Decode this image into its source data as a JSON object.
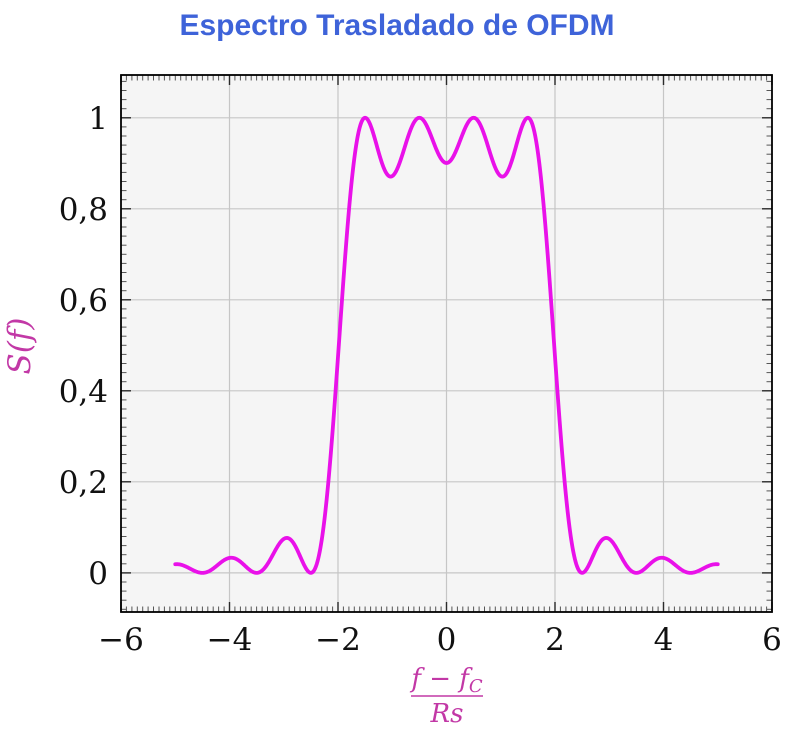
{
  "chart_data": {
    "type": "line",
    "title": "Espectro Trasladado de OFDM",
    "ylabel": "S(f)",
    "xlabel": {
      "numerator": "f − f",
      "numerator_subscript": "C",
      "denominator": "Rs"
    },
    "x_range": [
      -6,
      6
    ],
    "y_range": [
      -0.086,
      1.094
    ],
    "x_ticks": [
      -6,
      -4,
      -2,
      0,
      2,
      4,
      6
    ],
    "x_tick_labels": [
      "−6",
      "−4",
      "−2",
      "0",
      "2",
      "4",
      "6"
    ],
    "y_ticks": [
      0,
      0.2,
      0.4,
      0.6,
      0.8,
      1
    ],
    "y_tick_labels": [
      "0",
      "0,2",
      "0,4",
      "0,6",
      "0,8",
      "1"
    ],
    "x_minor_step": 0.1,
    "y_minor_step": 0.02,
    "grid": "major",
    "legend": "none",
    "series": [
      {
        "name": "S(f)",
        "model": "sum_of_squared_sincs",
        "formula": "S(f) = sinc²(f+1.5) + sinc²(f+0.5) + sinc²(f−0.5) + sinc²(f−1.5)",
        "subcarriers": [
          -1.5,
          -0.5,
          0.5,
          1.5
        ],
        "domain": [
          -5,
          5
        ],
        "key_points": [
          {
            "x": -5,
            "y": 0.019
          },
          {
            "x": -4.5,
            "y": 0
          },
          {
            "x": -4,
            "y": 0.033
          },
          {
            "x": -3.5,
            "y": 0
          },
          {
            "x": -3,
            "y": 0.074
          },
          {
            "x": -2.5,
            "y": 0
          },
          {
            "x": -2,
            "y": 0.475
          },
          {
            "x": -1.5,
            "y": 1.0
          },
          {
            "x": -1,
            "y": 0.872
          },
          {
            "x": -0.5,
            "y": 1.0
          },
          {
            "x": 0,
            "y": 0.901
          },
          {
            "x": 0.5,
            "y": 1.0
          },
          {
            "x": 1,
            "y": 0.872
          },
          {
            "x": 1.5,
            "y": 1.0
          },
          {
            "x": 2,
            "y": 0.475
          },
          {
            "x": 2.5,
            "y": 0
          },
          {
            "x": 3,
            "y": 0.074
          },
          {
            "x": 3.5,
            "y": 0
          },
          {
            "x": 4,
            "y": 0.033
          },
          {
            "x": 4.5,
            "y": 0
          },
          {
            "x": 5,
            "y": 0.019
          }
        ]
      }
    ],
    "colors": {
      "title": "#3E63D9",
      "curve": "#E911E9",
      "axis_label": "#C238A6",
      "grid": "#c6c6c6",
      "plot_background": "#f5f5f5",
      "page_background": "#ffffff",
      "tick_major": "#2a2a2a",
      "tick_minor": "#555555",
      "tick_label": "#111111",
      "border": "#000000"
    }
  }
}
